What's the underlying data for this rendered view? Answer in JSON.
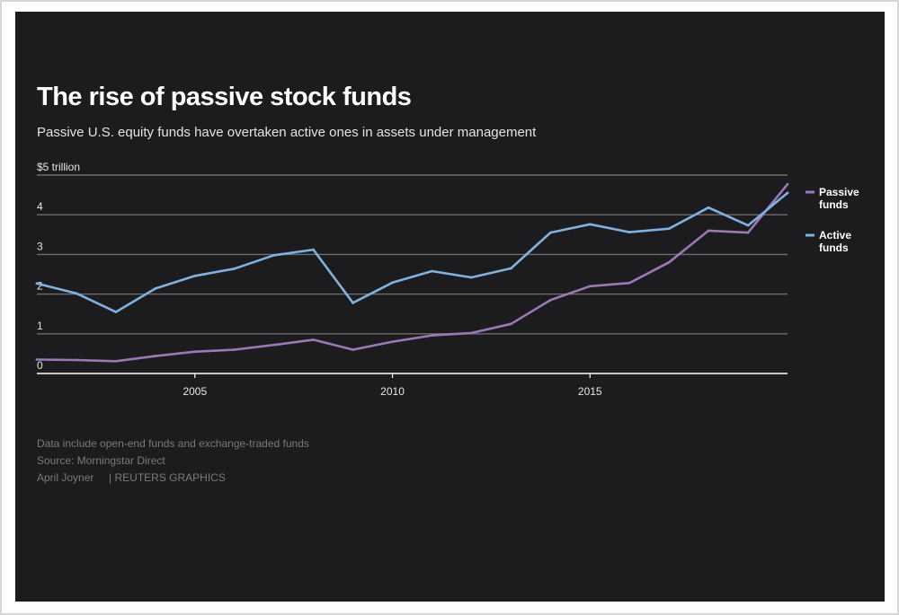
{
  "title": "The rise of passive stock funds",
  "subtitle": "Passive U.S. equity funds have overtaken active ones in assets under management",
  "footer": {
    "note": "Data include open-end funds and exchange-traded funds",
    "source": "Source: Morningstar Direct",
    "credit": "April Joyner",
    "brand": "| REUTERS GRAPHICS"
  },
  "colors": {
    "background": "#1c1b1d",
    "passive": "#9b78b8",
    "active": "#7fb2e0",
    "gridline": "#6e6e6e",
    "text": "#ffffff"
  },
  "chart_data": {
    "type": "line",
    "title": "The rise of passive stock funds",
    "subtitle": "Passive U.S. equity funds have overtaken active ones in assets under management",
    "xlabel": "",
    "ylabel": "",
    "xlim": [
      2001,
      2020
    ],
    "ylim": [
      0,
      5
    ],
    "grid": true,
    "legend": "right",
    "x": [
      2001,
      2002,
      2003,
      2004,
      2005,
      2006,
      2007,
      2008,
      2009,
      2010,
      2011,
      2012,
      2013,
      2014,
      2015,
      2016,
      2017,
      2018,
      2019,
      2020
    ],
    "xticks": [
      {
        "value": 2005,
        "label": "2005"
      },
      {
        "value": 2010,
        "label": "2010"
      },
      {
        "value": 2015,
        "label": "2015"
      }
    ],
    "yticks": [
      {
        "value": 0,
        "label": "0"
      },
      {
        "value": 1,
        "label": "1"
      },
      {
        "value": 2,
        "label": "2"
      },
      {
        "value": 3,
        "label": "3"
      },
      {
        "value": 4,
        "label": "4"
      },
      {
        "value": 5,
        "label": "$5 trillion"
      }
    ],
    "series": [
      {
        "name": "Passive funds",
        "legend_lines": [
          "Passive",
          "funds"
        ],
        "color": "#9b78b8",
        "values": [
          0.35,
          0.34,
          0.31,
          0.44,
          0.55,
          0.6,
          0.72,
          0.85,
          0.6,
          0.8,
          0.96,
          1.02,
          1.25,
          1.85,
          2.2,
          2.28,
          2.8,
          3.6,
          3.55,
          4.77
        ]
      },
      {
        "name": "Active funds",
        "legend_lines": [
          "Active",
          "funds"
        ],
        "color": "#7fb2e0",
        "values": [
          2.27,
          2.02,
          1.55,
          2.14,
          2.46,
          2.64,
          2.98,
          3.12,
          1.78,
          2.29,
          2.58,
          2.42,
          2.65,
          3.55,
          3.76,
          3.56,
          3.65,
          4.18,
          3.73,
          4.55
        ]
      }
    ]
  }
}
